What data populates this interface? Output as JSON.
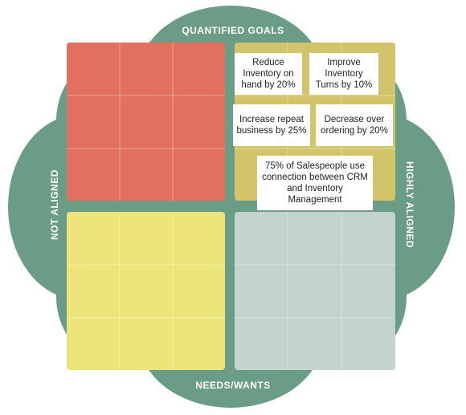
{
  "axes": {
    "top": "QUANTIFIED GOALS",
    "bottom": "NEEDS/WANTS",
    "left": "NOT ALIGNED",
    "right": "HIGHLY ALIGNED"
  },
  "goals": [
    {
      "text": "Reduce Inventory on hand by 20%"
    },
    {
      "text": "Improve Inventory Turns by 10%"
    },
    {
      "text": "Increase repeat business by 25%"
    },
    {
      "text": "Decrease over ordering by 20%"
    },
    {
      "text": "75% of Salespeople use connection between CRM and Inventory Management"
    }
  ],
  "colors": {
    "background_shape": "#6b9c86",
    "quadrant_top_left": "#e2705e",
    "quadrant_top_right": "#d2c46a",
    "quadrant_bottom_left": "#ece57a",
    "quadrant_bottom_right": "#c3d3cd"
  }
}
